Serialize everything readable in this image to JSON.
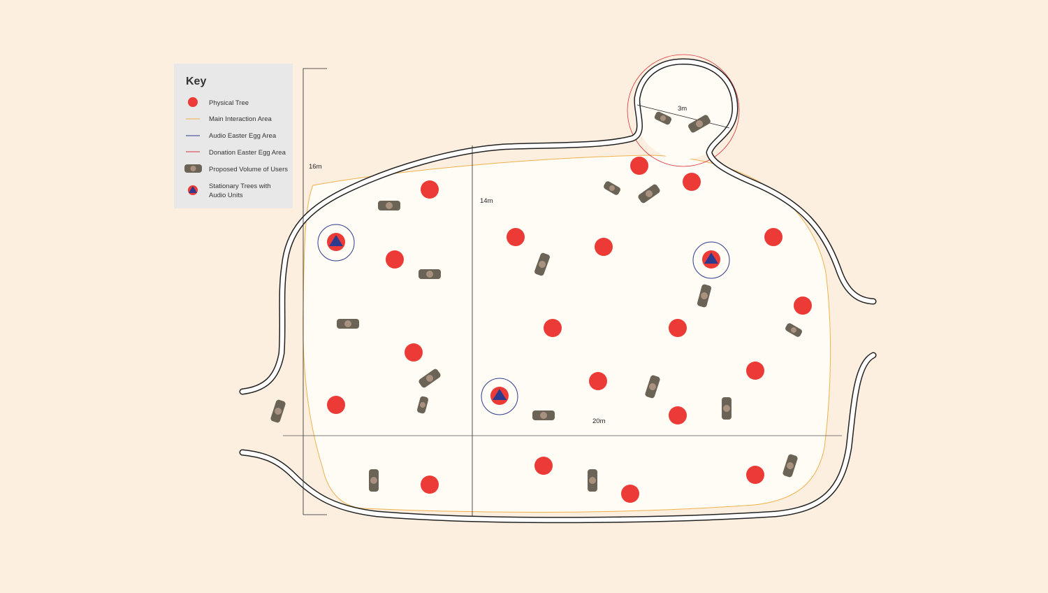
{
  "key": {
    "title": "Key",
    "items": [
      {
        "label": "Physical Tree",
        "symbol": "red-circle-icon",
        "color": "#ec3b36"
      },
      {
        "label": "Main Interaction Area",
        "symbol": "orange-line-icon",
        "color": "#f0b14b"
      },
      {
        "label": "Audio Easter Egg Area",
        "symbol": "blue-line-icon",
        "color": "#2d3b8e"
      },
      {
        "label": "Donation Easter Egg Area",
        "symbol": "red-line-icon",
        "color": "#d9333a"
      },
      {
        "label": "Proposed Volume of Users",
        "symbol": "user-capsule-icon",
        "color": "#6b6356"
      },
      {
        "label": "Stationary Trees with",
        "label2": "Audio Units",
        "symbol": "tree-audio-icon",
        "color": "#2d3b8e"
      }
    ]
  },
  "dimensions": {
    "height": "16m",
    "inner_height": "14m",
    "width": "20m",
    "donation_diameter": "3m"
  },
  "colors": {
    "background": "#fcefdf",
    "area_fill": "#fffbf5",
    "tree": "#ec3b36",
    "user": "#6b6356",
    "user_dot": "#a8917f",
    "audio": "#2d3b8e",
    "boundary": "#f0b14b",
    "path": "#222222"
  }
}
